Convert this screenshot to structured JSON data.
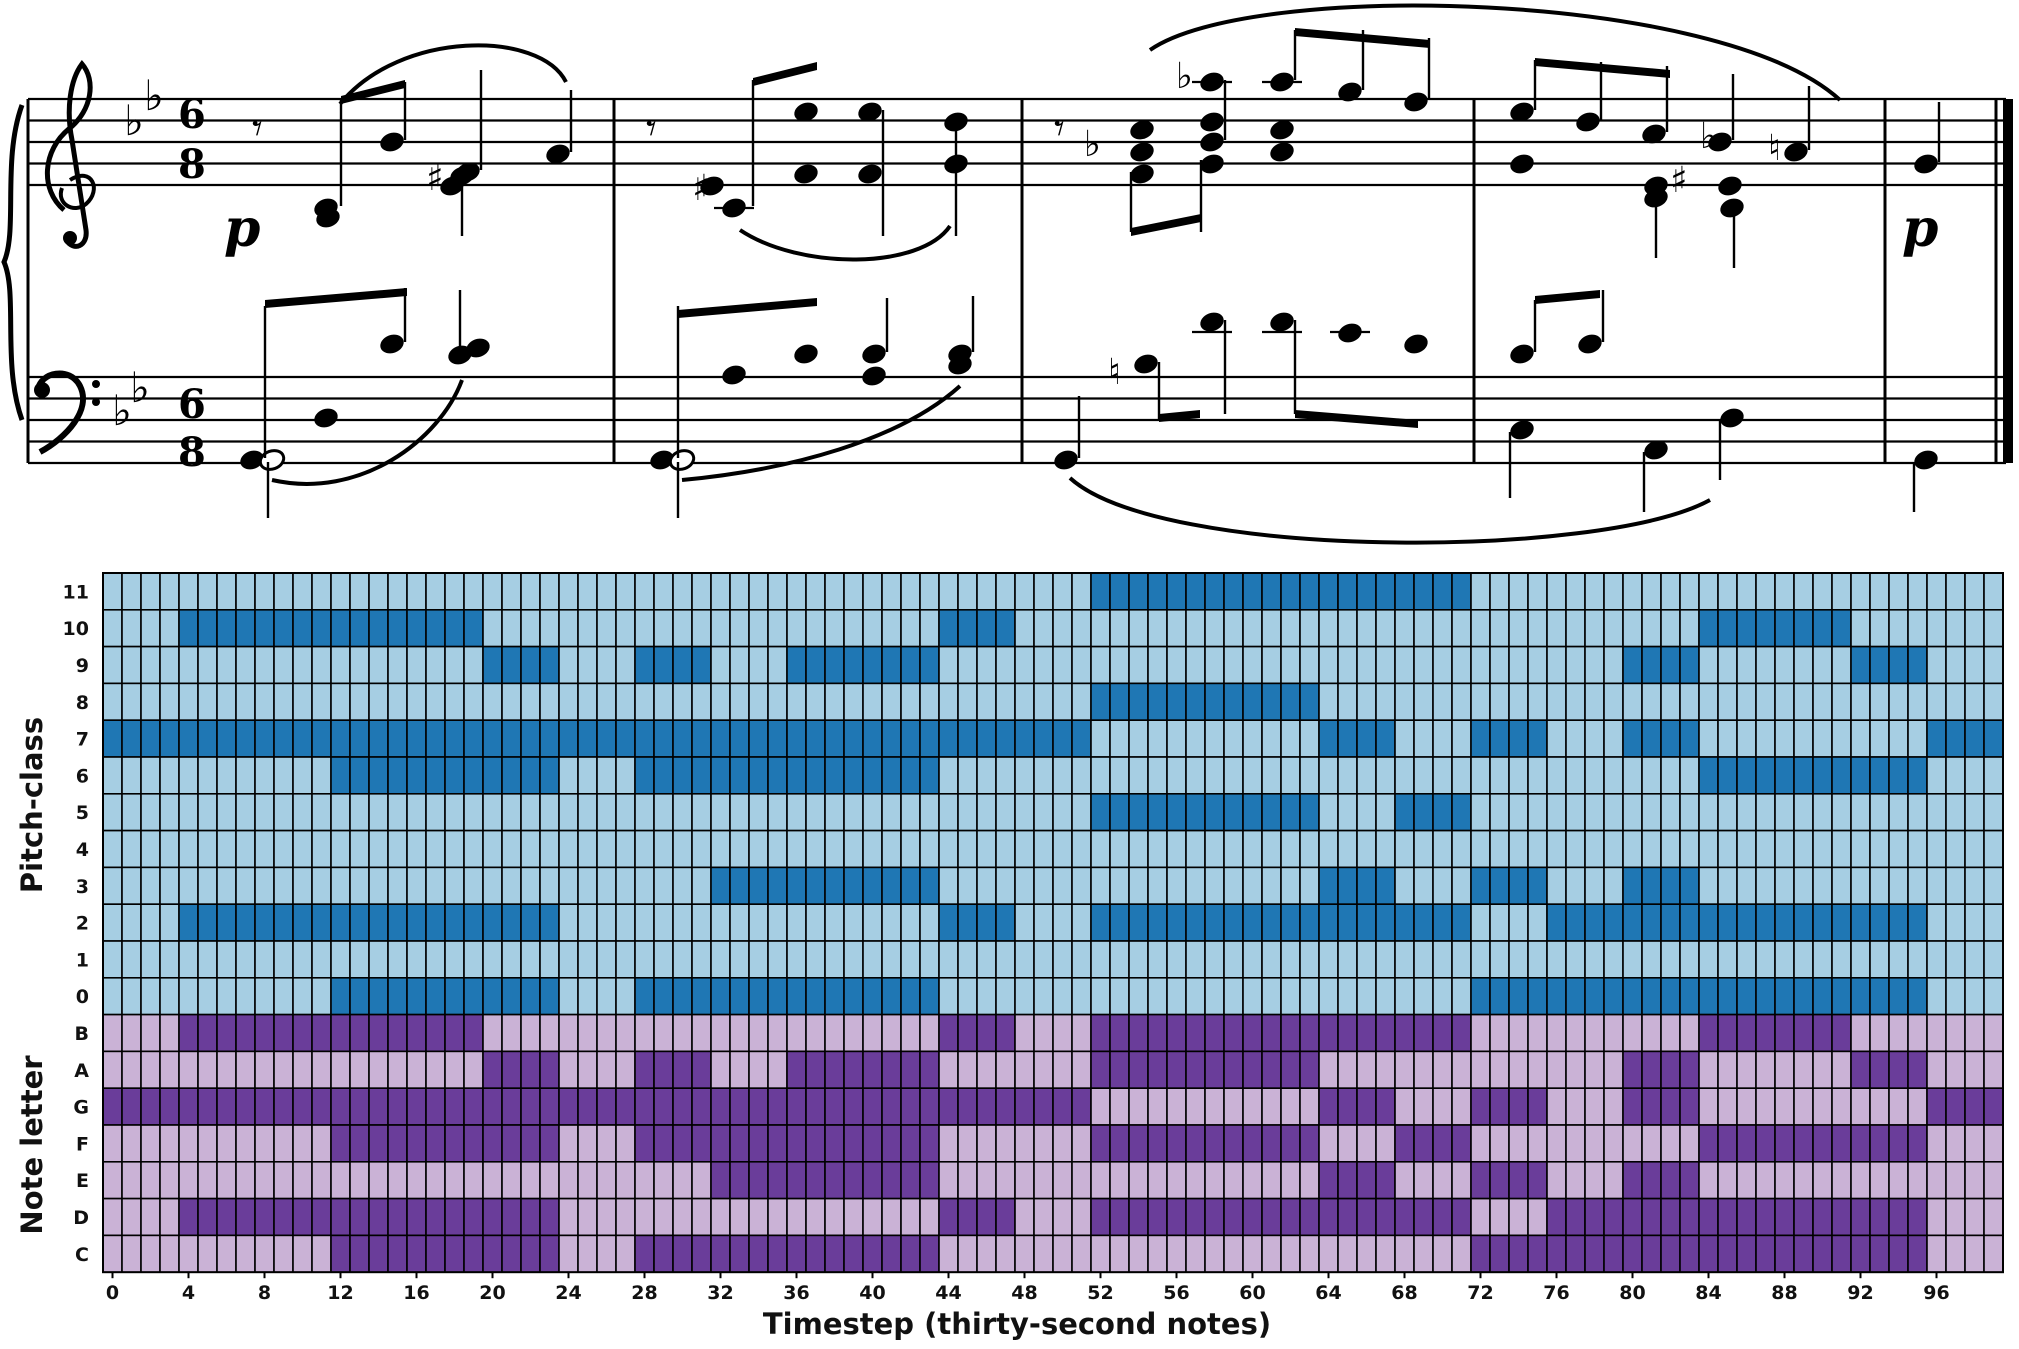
{
  "colors": {
    "pc_on": "#1f77b4",
    "pc_off": "#a6cee3",
    "letter_on": "#6a3d9a",
    "letter_off": "#cab2d6",
    "grid": "#000000"
  },
  "score": {
    "time_signature": {
      "top": "6",
      "bottom": "8"
    },
    "dynamics": [
      "p",
      "p"
    ],
    "key": "two flats"
  },
  "chart_data": {
    "type": "heatmap",
    "xlabel": "Timestep (thirty-second notes)",
    "x_ticks": [
      "0",
      "4",
      "8",
      "12",
      "16",
      "20",
      "24",
      "28",
      "32",
      "36",
      "40",
      "44",
      "48",
      "52",
      "56",
      "60",
      "64",
      "68",
      "72",
      "76",
      "80",
      "84",
      "88",
      "92",
      "96"
    ],
    "n_timesteps": 100,
    "panels": [
      {
        "ylabel": "Pitch-class",
        "rows": [
          "0",
          "1",
          "2",
          "3",
          "4",
          "5",
          "6",
          "7",
          "8",
          "9",
          "10",
          "11"
        ],
        "active_ranges": {
          "0": [
            [
              12,
              23
            ],
            [
              28,
              43
            ],
            [
              72,
              95
            ]
          ],
          "1": [],
          "2": [
            [
              4,
              23
            ],
            [
              44,
              47
            ],
            [
              52,
              71
            ],
            [
              76,
              83
            ],
            [
              84,
              95
            ]
          ],
          "3": [
            [
              32,
              43
            ],
            [
              64,
              67
            ],
            [
              72,
              75
            ],
            [
              80,
              83
            ]
          ],
          "4": [],
          "5": [
            [
              52,
              63
            ],
            [
              68,
              71
            ]
          ],
          "6": [
            [
              12,
              23
            ],
            [
              28,
              43
            ],
            [
              84,
              95
            ]
          ],
          "7": [
            [
              0,
              51
            ],
            [
              64,
              67
            ],
            [
              72,
              75
            ],
            [
              80,
              83
            ],
            [
              96,
              99
            ]
          ],
          "8": [
            [
              52,
              63
            ]
          ],
          "9": [
            [
              20,
              23
            ],
            [
              28,
              31
            ],
            [
              36,
              43
            ],
            [
              80,
              83
            ],
            [
              92,
              95
            ]
          ],
          "10": [
            [
              4,
              19
            ],
            [
              44,
              47
            ],
            [
              84,
              91
            ]
          ],
          "11": [
            [
              52,
              71
            ]
          ]
        }
      },
      {
        "ylabel": "Note letter",
        "rows": [
          "C",
          "D",
          "E",
          "F",
          "G",
          "A",
          "B"
        ],
        "active_ranges": {
          "C": [
            [
              12,
              23
            ],
            [
              28,
              43
            ],
            [
              72,
              95
            ]
          ],
          "D": [
            [
              4,
              23
            ],
            [
              44,
              47
            ],
            [
              52,
              71
            ],
            [
              76,
              95
            ]
          ],
          "E": [
            [
              32,
              43
            ],
            [
              64,
              67
            ],
            [
              72,
              75
            ],
            [
              80,
              83
            ]
          ],
          "F": [
            [
              12,
              23
            ],
            [
              28,
              43
            ],
            [
              52,
              63
            ],
            [
              68,
              71
            ],
            [
              84,
              95
            ]
          ],
          "G": [
            [
              0,
              51
            ],
            [
              64,
              67
            ],
            [
              72,
              75
            ],
            [
              80,
              83
            ],
            [
              96,
              99
            ]
          ],
          "A": [
            [
              20,
              23
            ],
            [
              28,
              31
            ],
            [
              36,
              43
            ],
            [
              52,
              63
            ],
            [
              80,
              83
            ],
            [
              92,
              95
            ]
          ],
          "B": [
            [
              4,
              19
            ],
            [
              44,
              47
            ],
            [
              52,
              71
            ],
            [
              84,
              91
            ]
          ]
        }
      }
    ]
  }
}
